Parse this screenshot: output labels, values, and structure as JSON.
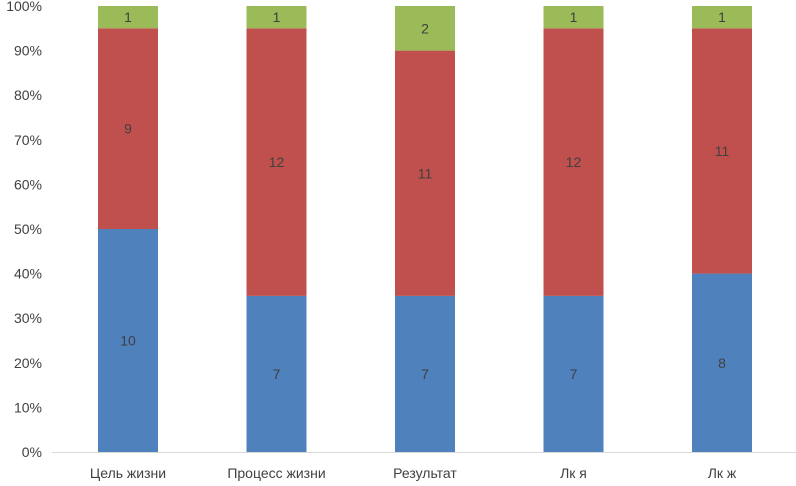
{
  "chart_data": {
    "type": "bar",
    "stacked": "percent",
    "categories": [
      "Цель жизни",
      "Процесс жизни",
      "Результат",
      "Лк я",
      "Лк ж"
    ],
    "series": [
      {
        "values": [
          10,
          7,
          7,
          7,
          8
        ],
        "color": "#4F81BD"
      },
      {
        "values": [
          9,
          12,
          11,
          12,
          11
        ],
        "color": "#C0504D"
      },
      {
        "values": [
          1,
          1,
          2,
          1,
          1
        ],
        "color": "#9BBB59"
      }
    ],
    "y_ticks": [
      "0%",
      "10%",
      "20%",
      "30%",
      "40%",
      "50%",
      "60%",
      "70%",
      "80%",
      "90%",
      "100%"
    ],
    "ylim": [
      0,
      100
    ],
    "grid": false,
    "legend": "none"
  }
}
